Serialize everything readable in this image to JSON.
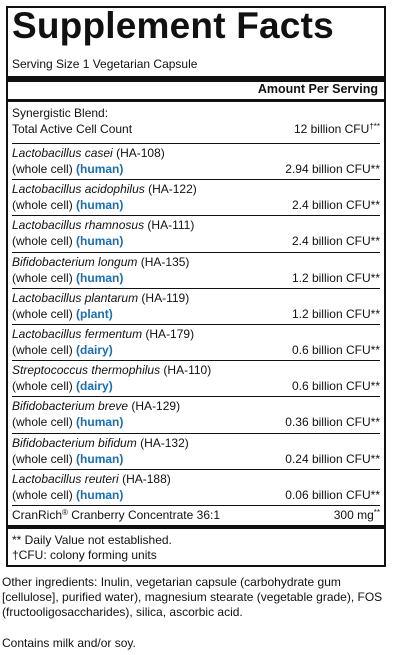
{
  "title": "Supplement Facts",
  "serving_size": "Serving Size 1 Vegetarian Capsule",
  "amount_header": "Amount Per Serving",
  "blend": {
    "name_line1": "Synergistic Blend:",
    "name_line2": "Total Active Cell Count",
    "amount": "12 billion CFU",
    "amount_marks": "†**"
  },
  "ingredients": [
    {
      "species": "Lactobacillus casei",
      "strain": " (HA-108)",
      "cell_prefix": "(whole cell) ",
      "source": "(human)",
      "amount": "2.94 billion CFU**"
    },
    {
      "species": "Lactobacillus acidophilus",
      "strain": " (HA-122)",
      "cell_prefix": "(whole cell) ",
      "source": "(human)",
      "amount": "2.4 billion CFU**"
    },
    {
      "species": "Lactobacillus rhamnosus",
      "strain": " (HA-111)",
      "cell_prefix": "(whole cell) ",
      "source": "(human)",
      "amount": "2.4 billion CFU**"
    },
    {
      "species": "Bifidobacterium longum",
      "strain": " (HA-135)",
      "cell_prefix": "(whole cell) ",
      "source": "(human)",
      "amount": "1.2 billion CFU**"
    },
    {
      "species": "Lactobacillus plantarum",
      "strain": " (HA-119)",
      "cell_prefix": "(whole cell) ",
      "source": "(plant)",
      "amount": "1.2 billion CFU**"
    },
    {
      "species": "Lactobacillus fermentum",
      "strain": " (HA-179)",
      "cell_prefix": "(whole cell) ",
      "source": "(dairy)",
      "amount": "0.6 billion CFU**"
    },
    {
      "species": "Streptococcus thermophilus",
      "strain": " (HA-110)",
      "cell_prefix": "(whole cell) ",
      "source": "(dairy)",
      "amount": "0.6 billion CFU**"
    },
    {
      "species": "Bifidobacterium breve",
      "strain": " (HA-129)",
      "cell_prefix": "(whole cell) ",
      "source": "(human)",
      "amount": "0.36 billion CFU**"
    },
    {
      "species": "Bifidobacterium bifidum",
      "strain": " (HA-132)",
      "cell_prefix": "(whole cell) ",
      "source": "(human)",
      "amount": "0.24 billion CFU**"
    },
    {
      "species": "Lactobacillus reuteri",
      "strain": " (HA-188)",
      "cell_prefix": "(whole cell) ",
      "source": "(human)",
      "amount": "0.06 billion CFU**"
    }
  ],
  "cranrich": {
    "brand": "CranRich",
    "reg_mark": "®",
    "name": " Cranberry Concentrate 36:1",
    "amount": "300 mg",
    "amount_marks": "**"
  },
  "footnotes": {
    "daily_value": "** Daily Value not established.",
    "cfu": "†CFU: colony forming units"
  },
  "other_ingredients": "Other ingredients: Inulin, vegetarian capsule (carbohydrate gum [cellulose], purified water), magnesium stearate (vegetable grade), FOS (fructooligosaccharides), silica, ascorbic acid.",
  "contains": "Contains milk and/or soy.",
  "colors": {
    "source_blue": "#1a6fb3",
    "text": "#111111"
  }
}
